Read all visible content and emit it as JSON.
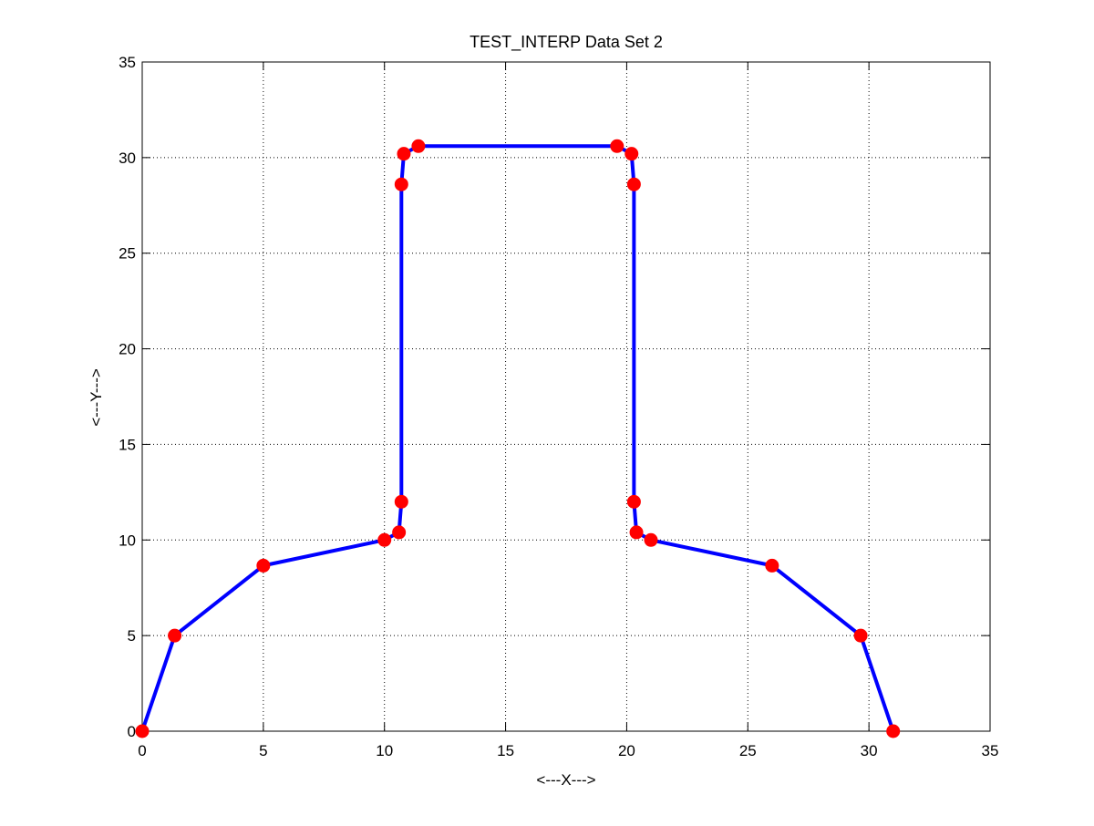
{
  "chart_data": {
    "type": "line",
    "title": "TEST_INTERP Data Set 2",
    "xlabel": "<---X--->",
    "ylabel": "<---Y--->",
    "xlim": [
      0,
      35
    ],
    "ylim": [
      0,
      35
    ],
    "xticks": [
      0,
      5,
      10,
      15,
      20,
      25,
      30,
      35
    ],
    "yticks": [
      0,
      5,
      10,
      15,
      20,
      25,
      30,
      35
    ],
    "grid": true,
    "line_color": "#0000ff",
    "marker_color": "#ff0000",
    "series": [
      {
        "x": [
          0.0,
          1.34,
          5.0,
          10.0,
          10.6,
          10.7,
          10.7,
          10.8,
          11.4,
          19.6,
          20.2,
          20.3,
          20.3,
          20.4,
          21.0,
          26.0,
          29.66,
          31.0
        ],
        "y": [
          0.0,
          5.0,
          8.66,
          10.0,
          10.4,
          12.0,
          28.6,
          30.2,
          30.6,
          30.6,
          30.2,
          28.6,
          12.0,
          10.4,
          10.0,
          8.66,
          5.0,
          0.0
        ]
      }
    ]
  }
}
